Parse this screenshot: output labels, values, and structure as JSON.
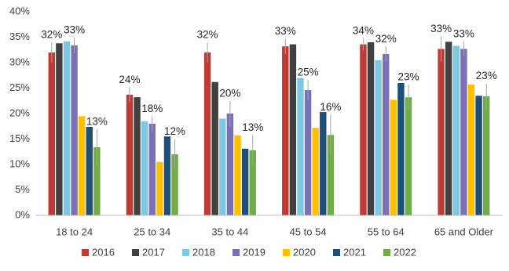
{
  "chart_data": {
    "type": "bar",
    "categories": [
      "18 to 24",
      "25 to 34",
      "35 to 44",
      "45 to 54",
      "55 to 64",
      "65 and Older"
    ],
    "series": [
      {
        "name": "2016",
        "color": "#be3a34",
        "values": [
          32.0,
          23.7,
          32.0,
          33.2,
          33.6,
          32.7
        ],
        "errors": [
          2,
          1.5,
          2,
          1.5,
          1.2,
          2.5
        ],
        "value_labels": [
          "32%",
          "24%",
          "32%",
          "33%",
          "34%",
          "33%"
        ]
      },
      {
        "name": "2017",
        "color": "#404040",
        "values": [
          33.8,
          23.2,
          26.2,
          33.6,
          34.0,
          34.1
        ]
      },
      {
        "name": "2018",
        "color": "#7ec8e3",
        "values": [
          34.2,
          18.5,
          19.0,
          27.0,
          30.5,
          33.3
        ]
      },
      {
        "name": "2019",
        "color": "#7b6fb5",
        "values": [
          33.4,
          18.0,
          20.0,
          24.6,
          31.7,
          32.7
        ],
        "errors": [
          1.5,
          1.5,
          2.5,
          2,
          1.5,
          1.5
        ],
        "value_labels": [
          "33%",
          "18%",
          "20%",
          "25%",
          "32%",
          "33%"
        ]
      },
      {
        "name": "2020",
        "color": "#ffc000",
        "values": [
          19.5,
          10.5,
          15.7,
          17.2,
          22.7,
          25.7
        ]
      },
      {
        "name": "2021",
        "color": "#1f4e79",
        "values": [
          17.4,
          15.5,
          13.1,
          20.3,
          26.0,
          23.5
        ]
      },
      {
        "name": "2022",
        "color": "#70ad47",
        "values": [
          13.4,
          12.0,
          12.8,
          15.8,
          23.2,
          23.4
        ],
        "errors": [
          3.5,
          3,
          3,
          4,
          2.5,
          2.5
        ],
        "value_labels": [
          "13%",
          "12%",
          "13%",
          "16%",
          "23%",
          "23%"
        ]
      }
    ],
    "ylim": [
      0,
      40
    ],
    "yticks": [
      {
        "value": 0,
        "label": "0%"
      },
      {
        "value": 5,
        "label": "5%"
      },
      {
        "value": 10,
        "label": "10%"
      },
      {
        "value": 15,
        "label": "15%"
      },
      {
        "value": 20,
        "label": "20%"
      },
      {
        "value": 25,
        "label": "25%"
      },
      {
        "value": 30,
        "label": "30%"
      },
      {
        "value": 35,
        "label": "35%"
      },
      {
        "value": 40,
        "label": "40%"
      }
    ],
    "grid": false,
    "legend": "bottom"
  }
}
